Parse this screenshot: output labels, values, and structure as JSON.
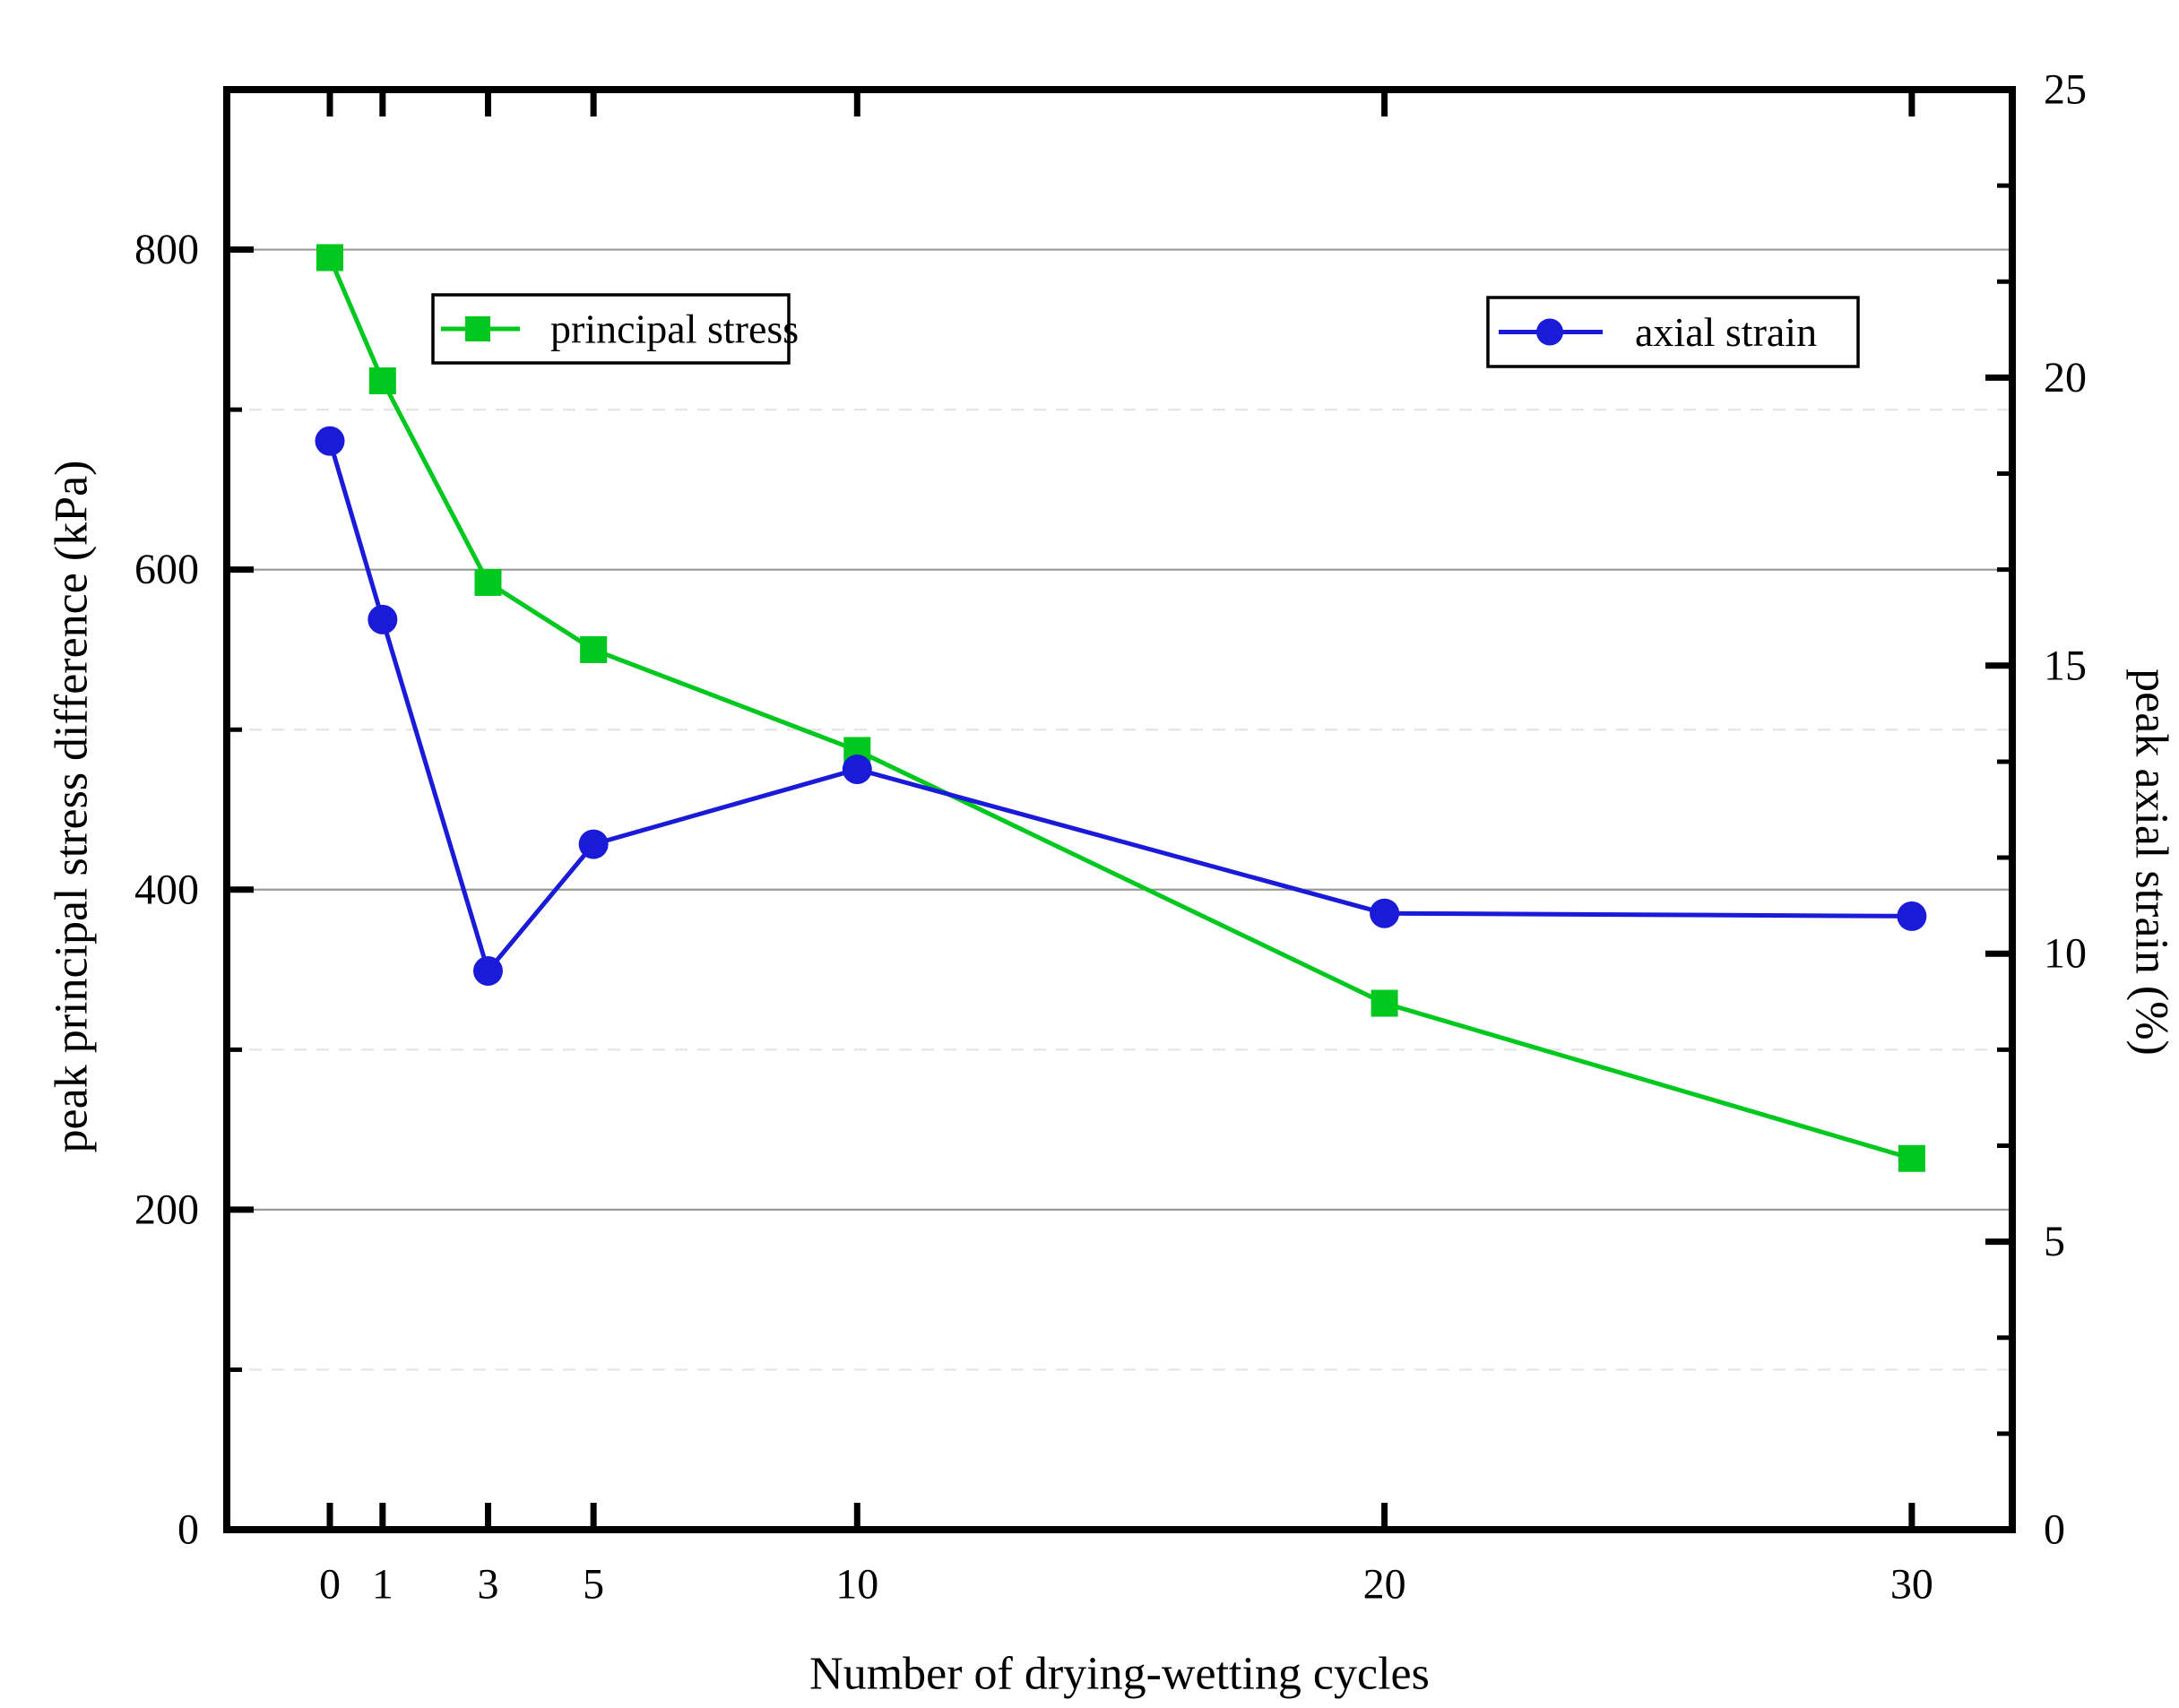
{
  "page": {
    "background": "#ffffff"
  },
  "chart_data": {
    "type": "line",
    "title": "",
    "xlabel": "Number of drying-wetting cycles",
    "x": [
      0,
      1,
      3,
      5,
      10,
      20,
      30
    ],
    "x_tick_labels": [
      "0",
      "1",
      "3",
      "5",
      "10",
      "20",
      "30"
    ],
    "x_range": [
      -1.95,
      31.9
    ],
    "left_axis": {
      "label": "peak principal stress difference (kPa)",
      "range": [
        0,
        900
      ],
      "major_ticks": [
        0,
        200,
        400,
        600,
        800
      ],
      "major_tick_labels": [
        "0",
        "200",
        "400",
        "600",
        "800"
      ],
      "minor_ticks": [
        100,
        300,
        500,
        700
      ]
    },
    "right_axis": {
      "label": "peak axial strain (%)",
      "range": [
        0,
        25
      ],
      "major_ticks": [
        0,
        5,
        10,
        15,
        20,
        25
      ],
      "major_tick_labels": [
        "0",
        "5",
        "10",
        "15",
        "20",
        "25"
      ],
      "minor_ticks": [
        1.667,
        3.333,
        6.667,
        8.333,
        11.667,
        13.333,
        16.667,
        18.333,
        21.667,
        23.333
      ]
    },
    "grid": {
      "solid_lines_kpa": [
        200,
        400,
        600,
        800
      ],
      "dashed_lines_kpa": [
        100,
        300,
        500,
        700
      ],
      "solid_color": "#999999",
      "dashed_color": "#e4e4e4"
    },
    "series": [
      {
        "name": "principal stress",
        "axis": "left",
        "marker": "square",
        "color": "#00c81e",
        "values": [
          795,
          718,
          592,
          550,
          487,
          329,
          232
        ]
      },
      {
        "name": "axial strain",
        "axis": "right",
        "marker": "circle",
        "color": "#1a1ad9",
        "values": [
          18.9,
          15.8,
          9.7,
          11.9,
          13.2,
          10.7,
          10.65
        ]
      }
    ],
    "legend": {
      "entries": [
        "principal stress",
        "axial strain"
      ],
      "position": "two boxed legends inside upper plot area"
    },
    "frame_color": "#000000"
  }
}
